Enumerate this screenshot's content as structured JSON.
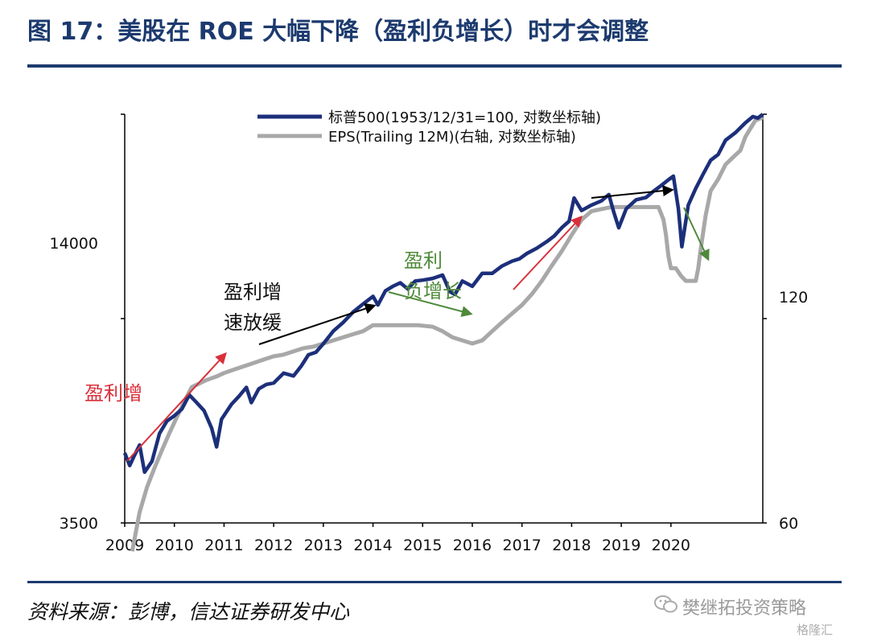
{
  "header": {
    "title": "图 17：美股在 ROE 大幅下降（盈利负增长）时才会调整"
  },
  "footer": {
    "source": "资料来源：彭博，信达证券研发中心"
  },
  "watermark": {
    "text": "樊继拓投资策略",
    "sub": "格隆汇"
  },
  "colors": {
    "spx": "#1c2f7a",
    "eps": "#a8a8a8",
    "accent_red": "#d9303a",
    "accent_green": "#4e8a3a",
    "title": "#1c3a6e"
  },
  "chart_data": {
    "type": "line",
    "x_ticks": [
      "2009",
      "2010",
      "2011",
      "2012",
      "2013",
      "2014",
      "2015",
      "2016",
      "2017",
      "2018",
      "2019",
      "2020"
    ],
    "y_left": {
      "scale": "log",
      "ticks": [
        3500,
        14000
      ],
      "range": [
        3500,
        26500
      ]
    },
    "y_right": {
      "scale": "log",
      "ticks": [
        60,
        120
      ],
      "range": [
        60,
        210
      ]
    },
    "legend": {
      "position": "top",
      "entries": [
        "标普500(1953/12/31=100, 对数坐标轴)",
        "EPS(Trailing 12M)(右轴, 对数坐标轴)"
      ]
    },
    "series": [
      {
        "name": "标普500(1953/12/31=100, 对数坐标轴)",
        "axis": "left",
        "points": [
          [
            2009.0,
            4950
          ],
          [
            2009.1,
            4650
          ],
          [
            2009.2,
            4900
          ],
          [
            2009.3,
            5150
          ],
          [
            2009.4,
            4500
          ],
          [
            2009.55,
            4750
          ],
          [
            2009.7,
            5450
          ],
          [
            2009.85,
            5800
          ],
          [
            2010.0,
            5950
          ],
          [
            2010.15,
            6150
          ],
          [
            2010.3,
            6600
          ],
          [
            2010.45,
            6350
          ],
          [
            2010.6,
            6100
          ],
          [
            2010.75,
            5600
          ],
          [
            2010.85,
            5100
          ],
          [
            2010.95,
            5850
          ],
          [
            2011.15,
            6300
          ],
          [
            2011.3,
            6550
          ],
          [
            2011.45,
            6850
          ],
          [
            2011.55,
            6350
          ],
          [
            2011.7,
            6800
          ],
          [
            2011.85,
            6950
          ],
          [
            2012.0,
            7000
          ],
          [
            2012.2,
            7350
          ],
          [
            2012.4,
            7250
          ],
          [
            2012.55,
            7600
          ],
          [
            2012.7,
            8050
          ],
          [
            2012.85,
            8150
          ],
          [
            2013.0,
            8500
          ],
          [
            2013.2,
            9050
          ],
          [
            2013.4,
            9450
          ],
          [
            2013.6,
            9950
          ],
          [
            2013.8,
            10350
          ],
          [
            2014.0,
            10750
          ],
          [
            2014.1,
            10300
          ],
          [
            2014.25,
            11050
          ],
          [
            2014.4,
            11300
          ],
          [
            2014.55,
            11500
          ],
          [
            2014.7,
            11150
          ],
          [
            2014.85,
            11600
          ],
          [
            2015.0,
            11650
          ],
          [
            2015.2,
            11750
          ],
          [
            2015.4,
            11950
          ],
          [
            2015.55,
            11000
          ],
          [
            2015.65,
            10850
          ],
          [
            2015.8,
            11600
          ],
          [
            2016.0,
            11300
          ],
          [
            2016.2,
            12050
          ],
          [
            2016.4,
            12050
          ],
          [
            2016.6,
            12500
          ],
          [
            2016.8,
            12800
          ],
          [
            2016.95,
            12950
          ],
          [
            2017.1,
            13300
          ],
          [
            2017.3,
            13650
          ],
          [
            2017.5,
            14100
          ],
          [
            2017.65,
            14500
          ],
          [
            2017.8,
            15100
          ],
          [
            2017.95,
            15600
          ],
          [
            2018.05,
            17500
          ],
          [
            2018.2,
            16450
          ],
          [
            2018.4,
            16900
          ],
          [
            2018.6,
            17250
          ],
          [
            2018.75,
            17800
          ],
          [
            2018.85,
            16300
          ],
          [
            2018.95,
            15100
          ],
          [
            2019.1,
            16600
          ],
          [
            2019.3,
            17350
          ],
          [
            2019.5,
            17550
          ],
          [
            2019.65,
            18100
          ],
          [
            2019.8,
            18600
          ],
          [
            2019.95,
            19150
          ],
          [
            2020.05,
            19500
          ],
          [
            2020.15,
            16600
          ],
          [
            2020.22,
            13750
          ],
          [
            2020.35,
            16900
          ],
          [
            2020.5,
            18350
          ],
          [
            2020.65,
            19700
          ],
          [
            2020.8,
            21100
          ],
          [
            2020.95,
            21700
          ],
          [
            2021.1,
            23300
          ],
          [
            2021.3,
            24200
          ],
          [
            2021.5,
            25400
          ],
          [
            2021.65,
            26200
          ],
          [
            2021.75,
            26000
          ],
          [
            2021.85,
            26500
          ]
        ]
      },
      {
        "name": "EPS(Trailing 12M)(右轴, 对数坐标轴)",
        "axis": "right",
        "points": [
          [
            2009.15,
            55
          ],
          [
            2009.3,
            62
          ],
          [
            2009.45,
            67
          ],
          [
            2009.6,
            71
          ],
          [
            2009.75,
            75
          ],
          [
            2009.9,
            79
          ],
          [
            2010.05,
            83
          ],
          [
            2010.2,
            87
          ],
          [
            2010.35,
            91
          ],
          [
            2010.5,
            92
          ],
          [
            2010.65,
            93
          ],
          [
            2010.85,
            94
          ],
          [
            2011.0,
            95
          ],
          [
            2011.2,
            96
          ],
          [
            2011.4,
            97
          ],
          [
            2011.6,
            98
          ],
          [
            2011.8,
            99
          ],
          [
            2012.0,
            100
          ],
          [
            2012.2,
            100.5
          ],
          [
            2012.4,
            101.5
          ],
          [
            2012.6,
            102.5
          ],
          [
            2012.8,
            103
          ],
          [
            2013.0,
            104
          ],
          [
            2013.2,
            105
          ],
          [
            2013.4,
            106
          ],
          [
            2013.6,
            107
          ],
          [
            2013.8,
            108
          ],
          [
            2014.0,
            110
          ],
          [
            2014.3,
            110
          ],
          [
            2014.6,
            110
          ],
          [
            2014.9,
            110
          ],
          [
            2015.2,
            109.5
          ],
          [
            2015.4,
            108
          ],
          [
            2015.6,
            106
          ],
          [
            2015.8,
            105
          ],
          [
            2016.0,
            104
          ],
          [
            2016.2,
            105
          ],
          [
            2016.4,
            108
          ],
          [
            2016.6,
            111
          ],
          [
            2016.8,
            114
          ],
          [
            2017.0,
            117
          ],
          [
            2017.2,
            121
          ],
          [
            2017.4,
            126
          ],
          [
            2017.6,
            132
          ],
          [
            2017.8,
            138
          ],
          [
            2018.0,
            145
          ],
          [
            2018.2,
            152
          ],
          [
            2018.4,
            156
          ],
          [
            2018.6,
            157
          ],
          [
            2018.8,
            158
          ],
          [
            2019.0,
            158
          ],
          [
            2019.2,
            158
          ],
          [
            2019.4,
            158
          ],
          [
            2019.6,
            158
          ],
          [
            2019.75,
            158
          ],
          [
            2019.85,
            152
          ],
          [
            2019.9,
            145
          ],
          [
            2019.95,
            136
          ],
          [
            2020.0,
            131
          ],
          [
            2020.1,
            131
          ],
          [
            2020.2,
            128
          ],
          [
            2020.3,
            126
          ],
          [
            2020.4,
            126
          ],
          [
            2020.5,
            126
          ],
          [
            2020.55,
            131
          ],
          [
            2020.6,
            139
          ],
          [
            2020.7,
            154
          ],
          [
            2020.8,
            166
          ],
          [
            2020.95,
            172
          ],
          [
            2021.1,
            180
          ],
          [
            2021.25,
            184
          ],
          [
            2021.4,
            188
          ],
          [
            2021.5,
            196
          ],
          [
            2021.6,
            201
          ],
          [
            2021.7,
            206
          ],
          [
            2021.85,
            208
          ]
        ]
      }
    ],
    "annotations": [
      {
        "text": "盈利增",
        "color": "red"
      },
      {
        "text": "盈利增速放缓",
        "color": "black"
      },
      {
        "text": "盈利负增长",
        "color": "green"
      }
    ]
  }
}
